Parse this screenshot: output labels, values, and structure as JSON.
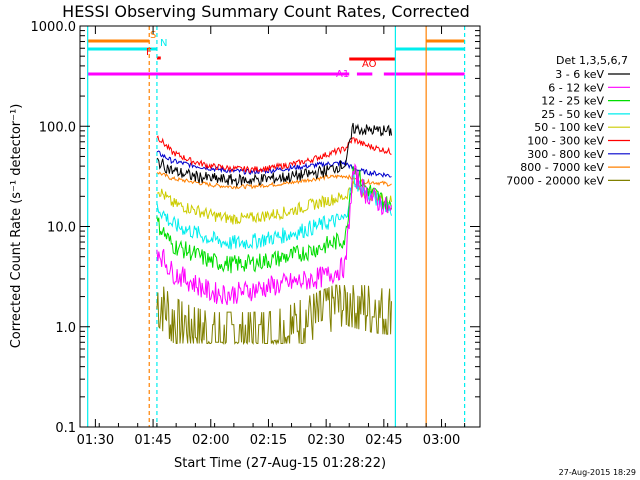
{
  "chart_data": {
    "type": "line",
    "title": "HESSI Observing Summary Count Rates, Corrected",
    "xlabel": "Start Time (27-Aug-15 01:28:22)",
    "ylabel": "Corrected Count Rate (s⁻¹ detector⁻¹)",
    "yscale": "log",
    "ylim": [
      0.1,
      1000
    ],
    "xlim": [
      "01:26",
      "03:10"
    ],
    "xticks": [
      "01:30",
      "01:45",
      "02:00",
      "02:15",
      "02:30",
      "02:45",
      "03:00"
    ],
    "yticks": [
      "0.1",
      "1.0",
      "10.0",
      "100.0",
      "1000.0"
    ],
    "legend_title": "Det 1,3,5,6,7",
    "legend_position": "right",
    "x": [
      "01:46",
      "01:50",
      "01:55",
      "02:00",
      "02:05",
      "02:10",
      "02:15",
      "02:20",
      "02:25",
      "02:30",
      "02:35",
      "02:37",
      "02:40",
      "02:45",
      "02:47"
    ],
    "series": [
      {
        "name": "3 - 6 keV",
        "color": "#000000",
        "values": [
          45,
          36,
          32,
          30,
          29,
          29,
          30,
          31,
          33,
          36,
          42,
          95,
          92,
          90,
          88
        ]
      },
      {
        "name": "6 - 12 keV",
        "color": "#ff00ff",
        "values": [
          6,
          3.5,
          2.8,
          2.2,
          2.1,
          2.3,
          2.5,
          2.7,
          2.9,
          3.2,
          4,
          35,
          22,
          16,
          14
        ]
      },
      {
        "name": "12 - 25 keV",
        "color": "#00dd00",
        "values": [
          11,
          6.5,
          5.5,
          4.5,
          4.2,
          4.3,
          4.6,
          5,
          5.6,
          6.5,
          7.5,
          40,
          25,
          18,
          15
        ]
      },
      {
        "name": "25 - 50 keV",
        "color": "#00eeee",
        "values": [
          16,
          10.5,
          9,
          7.5,
          6.8,
          7,
          7.6,
          8.3,
          9.4,
          10.8,
          12,
          30,
          22,
          17,
          15
        ]
      },
      {
        "name": "50 - 100 keV",
        "color": "#cccc00",
        "values": [
          24,
          17,
          15,
          13,
          12,
          12,
          13,
          14,
          16,
          18,
          20,
          26,
          22,
          19,
          18
        ]
      },
      {
        "name": "100 - 300 keV",
        "color": "#ff0000",
        "values": [
          80,
          55,
          45,
          40,
          38,
          37,
          38,
          41,
          45,
          52,
          60,
          75,
          65,
          58,
          55
        ]
      },
      {
        "name": "300 - 800 keV",
        "color": "#0000cc",
        "values": [
          55,
          45,
          41,
          38,
          36,
          35,
          36,
          38,
          40,
          42,
          43,
          38,
          35,
          33,
          32
        ]
      },
      {
        "name": "800 - 7000 keV",
        "color": "#ff8000",
        "values": [
          35,
          30,
          28,
          26,
          25,
          25,
          26,
          27,
          29,
          31,
          32,
          30,
          28,
          27,
          26
        ]
      },
      {
        "name": "7000 - 20000 keV",
        "color": "#808000",
        "values": [
          1.5,
          1.0,
          0.8,
          0.7,
          0.7,
          0.7,
          0.7,
          0.8,
          1.0,
          1.2,
          1.5,
          1.4,
          1.3,
          1.2,
          1.2
        ]
      }
    ],
    "vertical_lines": [
      {
        "x": "01:28",
        "color": "#00eeee",
        "style": "solid"
      },
      {
        "x": "01:44",
        "color": "#ff8000",
        "style": "dashed"
      },
      {
        "x": "01:46",
        "color": "#00eeee",
        "style": "dashed"
      },
      {
        "x": "02:48",
        "color": "#00eeee",
        "style": "solid"
      },
      {
        "x": "02:56",
        "color": "#ff8000",
        "style": "solid"
      },
      {
        "x": "03:06",
        "color": "#00eeee",
        "style": "dashed"
      }
    ],
    "flags": [
      {
        "label": "S",
        "color": "#ff8000",
        "row": 0,
        "segments": [
          [
            "01:28",
            "01:44"
          ],
          [
            "02:56",
            "03:06"
          ]
        ]
      },
      {
        "label": "N",
        "color": "#00eeee",
        "row": 1,
        "segments": [
          [
            "01:28",
            "01:46"
          ],
          [
            "02:48",
            "03:06"
          ]
        ]
      },
      {
        "label": "F",
        "color": "#ff0000",
        "row": 2,
        "segments": [
          [
            "01:46",
            "01:47"
          ]
        ]
      },
      {
        "label": "AO",
        "color": "#ff0000",
        "row": 3,
        "segments": [
          [
            "02:36",
            "02:48"
          ]
        ]
      },
      {
        "label": "A1",
        "color": "#ff00ff",
        "row": 4,
        "segments": [
          [
            "01:28",
            "02:36"
          ],
          [
            "02:38",
            "02:42"
          ],
          [
            "02:45",
            "03:06"
          ]
        ]
      }
    ]
  },
  "footer": {
    "timestamp": "27-Aug-2015 18:29"
  }
}
